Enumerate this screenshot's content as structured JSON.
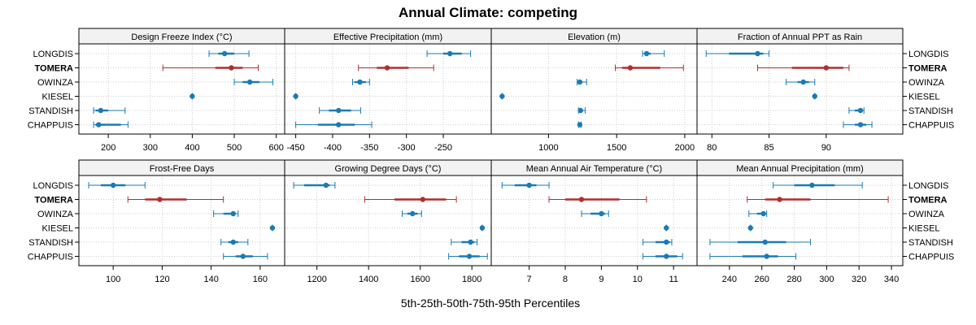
{
  "chart_data": {
    "type": "interval-dot",
    "title": "Annual Climate: competing",
    "xlabel": "5th-25th-50th-75th-95th Percentiles",
    "sites": [
      "LONGDIS",
      "TOMERA",
      "OWINZA",
      "KIESEL",
      "STANDISH",
      "CHAPPUIS"
    ],
    "highlight_site": "TOMERA",
    "colors": {
      "default": "#1a7ab3",
      "highlight": "#b22d2e",
      "strip": "#f2f2f2",
      "grid": "#cccccc"
    },
    "panels": [
      {
        "name": "Design Freeze Index (°C)",
        "xlim": [
          130,
          620
        ],
        "ticks": [
          200,
          300,
          400,
          500,
          600
        ],
        "tick_labels": [
          "200",
          "300",
          "400",
          "500",
          "600"
        ],
        "data": [
          {
            "site": "LONGDIS",
            "p": [
              440,
              462,
              477,
              500,
              535
            ]
          },
          {
            "site": "TOMERA",
            "p": [
              330,
              455,
              493,
              520,
              557
            ]
          },
          {
            "site": "OWINZA",
            "p": [
              500,
              520,
              537,
              560,
              592
            ]
          },
          {
            "site": "KIESEL",
            "p": [
              400,
              400,
              400,
              400,
              400
            ]
          },
          {
            "site": "STANDISH",
            "p": [
              165,
              170,
              182,
              200,
              240
            ]
          },
          {
            "site": "CHAPPUIS",
            "p": [
              165,
              170,
              177,
              230,
              247
            ]
          }
        ]
      },
      {
        "name": "Effective Precipitation (mm)",
        "xlim": [
          -465,
          -185
        ],
        "ticks": [
          -450,
          -400,
          -350,
          -300,
          -250
        ],
        "tick_labels": [
          "-450",
          "-400",
          "-350",
          "-300",
          "-250"
        ],
        "data": [
          {
            "site": "LONGDIS",
            "p": [
              -272,
              -250,
              -241,
              -225,
              -213
            ]
          },
          {
            "site": "TOMERA",
            "p": [
              -365,
              -340,
              -326,
              -297,
              -263
            ]
          },
          {
            "site": "OWINZA",
            "p": [
              -373,
              -370,
              -363,
              -355,
              -350
            ]
          },
          {
            "site": "KIESEL",
            "p": [
              -450,
              -450,
              -450,
              -450,
              -450
            ]
          },
          {
            "site": "STANDISH",
            "p": [
              -418,
              -405,
              -392,
              -375,
              -362
            ]
          },
          {
            "site": "CHAPPUIS",
            "p": [
              -450,
              -420,
              -392,
              -370,
              -347
            ]
          }
        ]
      },
      {
        "name": "Elevation (m)",
        "xlim": [
          580,
          2090
        ],
        "ticks": [
          1000,
          1500,
          2000
        ],
        "tick_labels": [
          "1000",
          "1500",
          "2000"
        ],
        "data": [
          {
            "site": "LONGDIS",
            "p": [
              1690,
              1700,
              1720,
              1750,
              1850
            ]
          },
          {
            "site": "TOMERA",
            "p": [
              1490,
              1540,
              1600,
              1820,
              1990
            ]
          },
          {
            "site": "OWINZA",
            "p": [
              1210,
              1220,
              1230,
              1250,
              1280
            ]
          },
          {
            "site": "KIESEL",
            "p": [
              660,
              660,
              660,
              660,
              660
            ]
          },
          {
            "site": "STANDISH",
            "p": [
              1220,
              1230,
              1235,
              1245,
              1270
            ]
          },
          {
            "site": "CHAPPUIS",
            "p": [
              1220,
              1225,
              1230,
              1235,
              1240
            ]
          }
        ]
      },
      {
        "name": "Fraction of Annual PPT as Rain",
        "xlim": [
          78.7,
          96.7
        ],
        "ticks": [
          80,
          85,
          90
        ],
        "tick_labels": [
          "80",
          "85",
          "90"
        ],
        "data": [
          {
            "site": "LONGDIS",
            "p": [
              79.5,
              81.5,
              84.0,
              84.5,
              85.0
            ]
          },
          {
            "site": "TOMERA",
            "p": [
              84.0,
              87.0,
              90.0,
              91.5,
              92.0
            ]
          },
          {
            "site": "OWINZA",
            "p": [
              86.5,
              87.5,
              88.0,
              88.5,
              89.0
            ]
          },
          {
            "site": "KIESEL",
            "p": [
              89.0,
              89.0,
              89.0,
              89.0,
              89.0
            ]
          },
          {
            "site": "STANDISH",
            "p": [
              92.0,
              92.5,
              93.0,
              93.2,
              93.3
            ]
          },
          {
            "site": "CHAPPUIS",
            "p": [
              91.5,
              92.5,
              93.0,
              93.5,
              94.0
            ]
          }
        ]
      },
      {
        "name": "Frost-Free Days",
        "xlim": [
          86,
          170
        ],
        "ticks": [
          100,
          120,
          140,
          160
        ],
        "tick_labels": [
          "100",
          "120",
          "140",
          "160"
        ],
        "data": [
          {
            "site": "LONGDIS",
            "p": [
              90,
              95,
              100,
              105,
              113
            ]
          },
          {
            "site": "TOMERA",
            "p": [
              106,
              113,
              119,
              130,
              145
            ]
          },
          {
            "site": "OWINZA",
            "p": [
              141,
              145,
              149,
              150,
              151
            ]
          },
          {
            "site": "KIESEL",
            "p": [
              165,
              165,
              165,
              165,
              165
            ]
          },
          {
            "site": "STANDISH",
            "p": [
              144,
              147,
              149,
              151,
              155
            ]
          },
          {
            "site": "CHAPPUIS",
            "p": [
              145,
              150,
              153,
              157,
              163
            ]
          }
        ]
      },
      {
        "name": "Growing Degree Days (°C)",
        "xlim": [
          1075,
          1875
        ],
        "ticks": [
          1200,
          1400,
          1600,
          1800
        ],
        "tick_labels": [
          "1200",
          "1400",
          "1600",
          "1800"
        ],
        "data": [
          {
            "site": "LONGDIS",
            "p": [
              1110,
              1150,
              1235,
              1250,
              1270
            ]
          },
          {
            "site": "TOMERA",
            "p": [
              1385,
              1500,
              1610,
              1700,
              1740
            ]
          },
          {
            "site": "OWINZA",
            "p": [
              1530,
              1550,
              1570,
              1590,
              1605
            ]
          },
          {
            "site": "KIESEL",
            "p": [
              1840,
              1840,
              1840,
              1840,
              1840
            ]
          },
          {
            "site": "STANDISH",
            "p": [
              1720,
              1760,
              1795,
              1810,
              1820
            ]
          },
          {
            "site": "CHAPPUIS",
            "p": [
              1710,
              1750,
              1790,
              1830,
              1860
            ]
          }
        ]
      },
      {
        "name": "Mean Annual Air Temperature (°C)",
        "xlim": [
          5.95,
          11.65
        ],
        "ticks": [
          7,
          8,
          9,
          10,
          11
        ],
        "tick_labels": [
          "7",
          "8",
          "9",
          "10",
          "11"
        ],
        "data": [
          {
            "site": "LONGDIS",
            "p": [
              6.25,
              6.6,
              7.0,
              7.2,
              7.55
            ]
          },
          {
            "site": "TOMERA",
            "p": [
              7.55,
              8.0,
              8.45,
              9.5,
              10.25
            ]
          },
          {
            "site": "OWINZA",
            "p": [
              8.45,
              8.7,
              9.0,
              9.1,
              9.2
            ]
          },
          {
            "site": "KIESEL",
            "p": [
              10.8,
              10.8,
              10.8,
              10.8,
              10.8
            ]
          },
          {
            "site": "STANDISH",
            "p": [
              10.15,
              10.5,
              10.8,
              10.9,
              10.95
            ]
          },
          {
            "site": "CHAPPUIS",
            "p": [
              10.15,
              10.5,
              10.8,
              11.1,
              11.25
            ]
          }
        ]
      },
      {
        "name": "Mean Annual Precipitation (mm)",
        "xlim": [
          220,
          347
        ],
        "ticks": [
          240,
          260,
          280,
          300,
          320,
          340
        ],
        "tick_labels": [
          "240",
          "260",
          "280",
          "300",
          "320",
          "340"
        ],
        "data": [
          {
            "site": "LONGDIS",
            "p": [
              267,
              280,
              291,
              305,
              322
            ]
          },
          {
            "site": "TOMERA",
            "p": [
              251,
              262,
              271,
              290,
              338
            ]
          },
          {
            "site": "OWINZA",
            "p": [
              252,
              257,
              261,
              262,
              263
            ]
          },
          {
            "site": "KIESEL",
            "p": [
              253,
              253,
              253,
              253,
              253
            ]
          },
          {
            "site": "STANDISH",
            "p": [
              228,
              245,
              262,
              275,
              290
            ]
          },
          {
            "site": "CHAPPUIS",
            "p": [
              228,
              248,
              263,
              270,
              281
            ]
          }
        ]
      }
    ]
  }
}
